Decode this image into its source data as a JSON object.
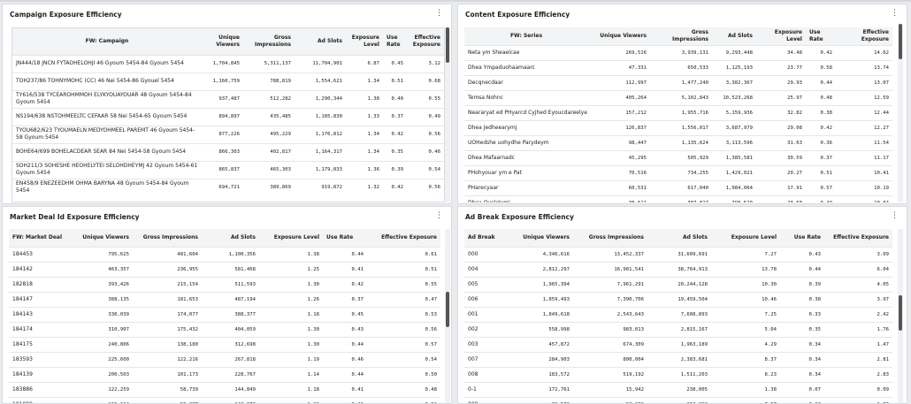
{
  "campaign": {
    "title": "Campaign Exposure Efficiency",
    "columns": [
      "FW: Campaign",
      "Unique Viewers",
      "Gross Impressions",
      "Ad Slots",
      "Exposure Level",
      "Use Rate",
      "Effective Exposure"
    ],
    "rows": [
      [
        "JN444/18 JNCN FYTAOHELOHJI 46 Gyoum 5454-84 Gyoum 5454",
        "1,704,845",
        "5,311,137",
        "11,704,901",
        "6.87",
        "0.45",
        "3.12"
      ],
      [
        "TOH237/86 TOHNYMOHC (CC) 46 Nei 5454-86 Gyouel 5454",
        "1,160,759",
        "788,819",
        "1,554,621",
        "1.34",
        "0.51",
        "0.68"
      ],
      [
        "TY616/538 TYCEAROHMMOH ELYKYOUAYOUAR 48 Gyoum 5454-84 Gyoum 5454",
        "937,487",
        "512,282",
        "1,290,344",
        "1.38",
        "0.40",
        "0.55"
      ],
      [
        "NS194/638 NSTOHMEELTC CEFAAR 58 Nei 5454-65 Gyoum 5454",
        "894,897",
        "435,485",
        "1,185,830",
        "1.33",
        "0.37",
        "0.49"
      ],
      [
        "TYOU682/623 TYOUMAELN MEDYOHMEEL PAREMT 46 Gyoum 5454-58 Gyoum 5454",
        "877,226",
        "495,229",
        "1,176,812",
        "1.34",
        "0.42",
        "0.56"
      ],
      [
        "BOHE64/699 BOHELACDEAR SEAR 84 Nei 5454-58 Gyoum 5454",
        "866,303",
        "402,817",
        "1,164,317",
        "1.34",
        "0.35",
        "0.46"
      ],
      [
        "SOH211/3 SOHESHE HEOHELYTEI SELOHDHEYMJ 42 Gyoum 5454-61 Gyoum 5454",
        "865,837",
        "465,303",
        "1,179,833",
        "1.36",
        "0.39",
        "0.54"
      ],
      [
        "EN458/9 ENEZEEDHM OHMA BARYNA 48 Gyoum 5454-84 Gyoum 5454",
        "694,721",
        "389,869",
        "919,872",
        "1.32",
        "0.42",
        "0.56"
      ]
    ]
  },
  "content": {
    "title": "Content Exposure Efficiency",
    "columns": [
      "FW: Series",
      "Unique Viewers",
      "Gross Impressions",
      "Ad Slots",
      "Exposure Level",
      "Use Rate",
      "Effective Exposure"
    ],
    "rows": [
      [
        "Neta ym Sheaelcae",
        "269,516",
        "3,939,131",
        "9,293,448",
        "34.48",
        "0.42",
        "14.62"
      ],
      [
        "Dhea Ympaduohaamaarc",
        "47,331",
        "650,533",
        "1,125,193",
        "23.77",
        "0.58",
        "13.74"
      ],
      [
        "Decqnecdaar",
        "112,997",
        "1,477,240",
        "3,382,367",
        "29.93",
        "0.44",
        "13.07"
      ],
      [
        "Temsa Nohnc",
        "405,264",
        "5,102,843",
        "10,523,268",
        "25.97",
        "0.48",
        "12.59"
      ],
      [
        "Neararyat ed PHyarcd Cyjhed Eyoucdareelye",
        "157,212",
        "1,955,716",
        "5,159,936",
        "32.82",
        "0.38",
        "12.44"
      ],
      [
        "Dhea Jedheearymj",
        "126,837",
        "1,556,017",
        "3,687,979",
        "29.08",
        "0.42",
        "12.27"
      ],
      [
        "UOHedshe uohydhe Parydeym",
        "98,447",
        "1,135,624",
        "3,113,596",
        "31.63",
        "0.36",
        "11.54"
      ],
      [
        "Dhea Mafaarnadc",
        "45,295",
        "505,929",
        "1,385,581",
        "30.59",
        "0.37",
        "11.17"
      ],
      [
        "PHohyouar ym e Pat",
        "70,516",
        "734,255",
        "1,429,021",
        "20.27",
        "0.51",
        "10.41"
      ],
      [
        "PHarecyaar",
        "60,531",
        "617,040",
        "1,084,064",
        "17.91",
        "0.57",
        "10.19"
      ],
      [
        "Dhea Qyelelymj",
        "38,611",
        "387,827",
        "798,520",
        "20.68",
        "0.49",
        "10.04"
      ]
    ]
  },
  "market": {
    "title": "Market Deal Id Exposure Efficiency",
    "columns": [
      "FW: Market Deal",
      "Unique Viewers",
      "Gross Impressions",
      "Ad Slots",
      "Exposure Level",
      "Use Rate",
      "Effective Exposure"
    ],
    "rows": [
      [
        "184453",
        "795,625",
        "481,604",
        "1,100,356",
        "1.38",
        "0.44",
        "0.61"
      ],
      [
        "184142",
        "463,357",
        "236,955",
        "581,468",
        "1.25",
        "0.41",
        "0.51"
      ],
      [
        "182818",
        "393,426",
        "215,154",
        "511,593",
        "1.30",
        "0.42",
        "0.55"
      ],
      [
        "184147",
        "388,135",
        "181,653",
        "487,194",
        "1.26",
        "0.37",
        "0.47"
      ],
      [
        "184143",
        "330,039",
        "174,077",
        "388,377",
        "1.18",
        "0.45",
        "0.53"
      ],
      [
        "184174",
        "310,907",
        "175,432",
        "404,059",
        "1.30",
        "0.43",
        "0.56"
      ],
      [
        "184175",
        "240,806",
        "138,180",
        "312,698",
        "1.30",
        "0.44",
        "0.57"
      ],
      [
        "183593",
        "225,600",
        "122,216",
        "267,818",
        "1.19",
        "0.46",
        "0.54"
      ],
      [
        "184139",
        "200,503",
        "101,173",
        "228,767",
        "1.14",
        "0.44",
        "0.50"
      ],
      [
        "183886",
        "122,259",
        "58,739",
        "144,849",
        "1.18",
        "0.41",
        "0.48"
      ],
      [
        "181999",
        "115,014",
        "59,877",
        "148,872",
        "1.29",
        "0.40",
        "0.52"
      ]
    ]
  },
  "adbreak": {
    "title": "Ad Break Exposure Efficiency",
    "columns": [
      "Ad Break",
      "Unique Viewers",
      "Gross Impressions",
      "Ad Slots",
      "Exposure Level",
      "Use Rate",
      "Effective Exposure"
    ],
    "rows": [
      [
        "000",
        "4,346,616",
        "13,452,337",
        "31,609,691",
        "7.27",
        "0.43",
        "3.09"
      ],
      [
        "004",
        "2,812,297",
        "16,981,541",
        "38,764,913",
        "13.78",
        "0.44",
        "6.04"
      ],
      [
        "005",
        "1,965,394",
        "7,961,291",
        "20,244,128",
        "10.30",
        "0.39",
        "4.05"
      ],
      [
        "006",
        "1,859,493",
        "7,390,706",
        "19,459,504",
        "10.46",
        "0.38",
        "3.97"
      ],
      [
        "001",
        "1,849,618",
        "2,543,643",
        "7,608,893",
        "7.25",
        "0.33",
        "2.42"
      ],
      [
        "002",
        "558,998",
        "983,013",
        "2,815,167",
        "5.04",
        "0.35",
        "1.76"
      ],
      [
        "003",
        "457,872",
        "674,309",
        "1,963,189",
        "4.29",
        "0.34",
        "1.47"
      ],
      [
        "007",
        "284,903",
        "800,004",
        "2,383,681",
        "8.37",
        "0.34",
        "2.81"
      ],
      [
        "008",
        "183,572",
        "519,192",
        "1,511,203",
        "8.23",
        "0.34",
        "2.83"
      ],
      [
        "0-1",
        "172,761",
        "15,942",
        "238,005",
        "1.38",
        "0.07",
        "0.09"
      ],
      [
        "009",
        "33,572",
        "58,039",
        "253,998",
        "7.57",
        "0.23",
        "1.73"
      ]
    ]
  }
}
